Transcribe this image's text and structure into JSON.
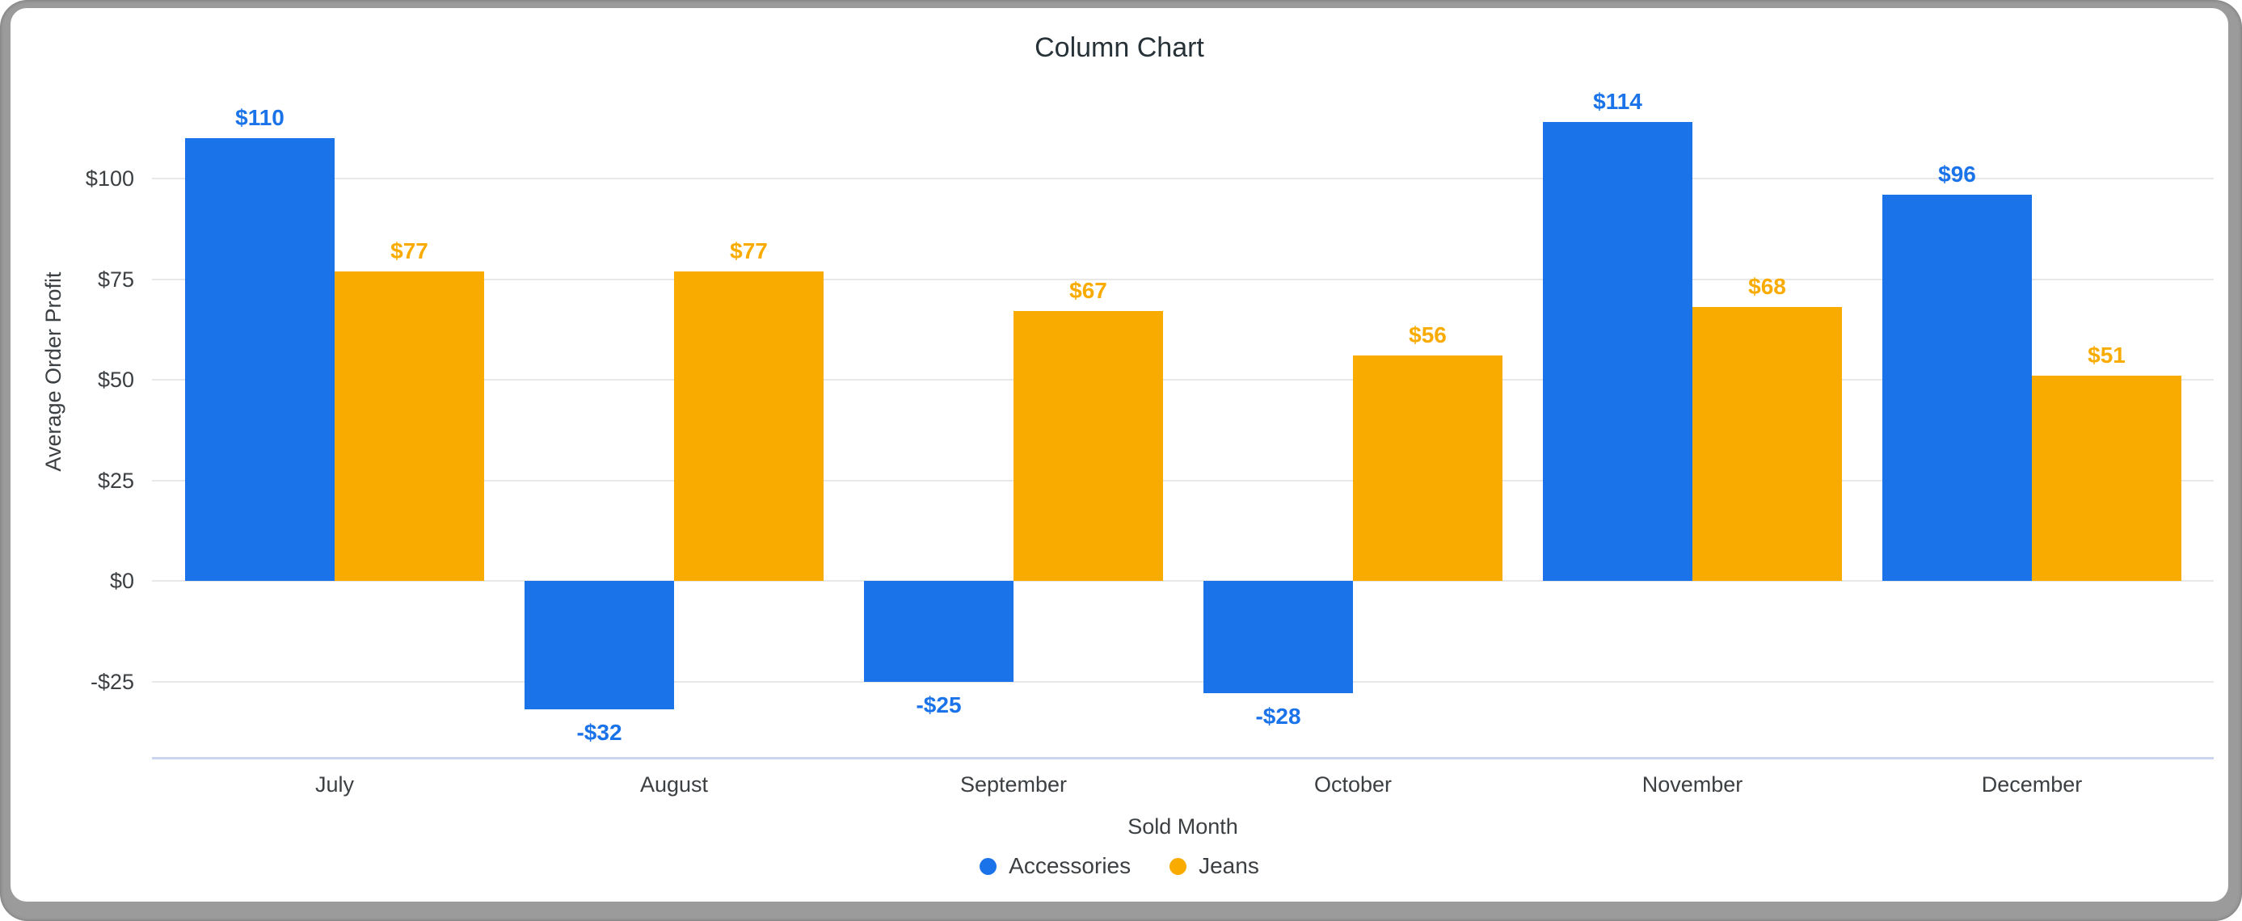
{
  "window": {
    "frame_color": "#9b9b9b",
    "card_background": "#ffffff"
  },
  "chart_data": {
    "type": "bar",
    "title": "Column Chart",
    "xlabel": "Sold Month",
    "ylabel": "Average Order Profit",
    "categories": [
      "July",
      "August",
      "September",
      "October",
      "November",
      "December"
    ],
    "series": [
      {
        "name": "Accessories",
        "color": "#1a73e8",
        "values": [
          110,
          -32,
          -25,
          -28,
          114,
          96
        ],
        "labels": [
          "$110",
          "-$32",
          "-$25",
          "-$28",
          "$114",
          "$96"
        ]
      },
      {
        "name": "Jeans",
        "color": "#f9ab00",
        "values": [
          77,
          77,
          67,
          56,
          68,
          51
        ],
        "labels": [
          "$77",
          "$77",
          "$67",
          "$56",
          "$68",
          "$51"
        ]
      }
    ],
    "y_ticks": [
      {
        "value": 100,
        "label": "$100"
      },
      {
        "value": 75,
        "label": "$75"
      },
      {
        "value": 50,
        "label": "$50"
      },
      {
        "value": 25,
        "label": "$25"
      },
      {
        "value": 0,
        "label": "$0"
      },
      {
        "value": -25,
        "label": "-$25"
      }
    ],
    "ylim": [
      -45,
      123
    ],
    "grid": true,
    "legend_position": "bottom",
    "colors": {
      "gridline": "#e8e8e8",
      "axis_line": "#c9d6ee",
      "axis_text": "#3c4043",
      "title_text": "#263238"
    }
  }
}
